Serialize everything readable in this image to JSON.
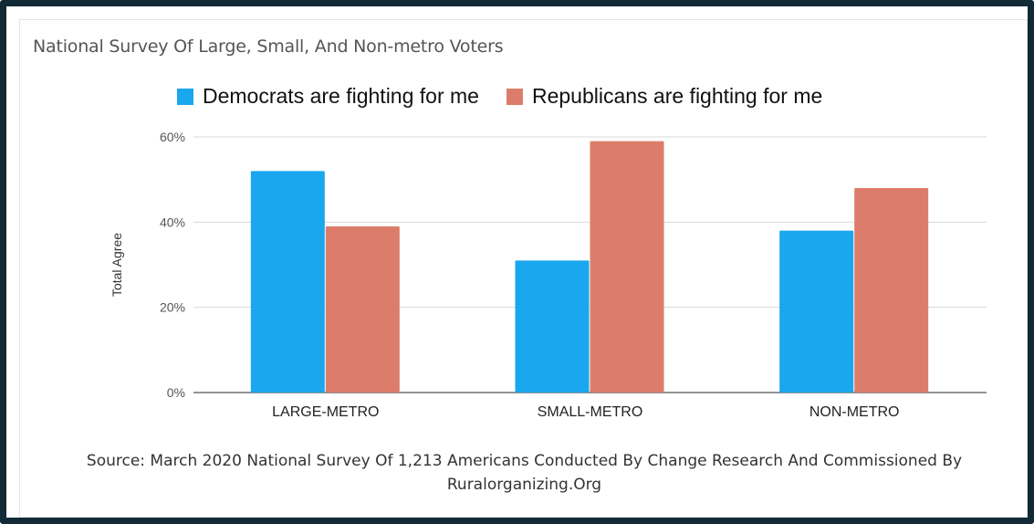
{
  "title": "National Survey Of Large, Small, And Non-metro Voters",
  "source_line1": "Source: March 2020 National Survey Of 1,213  Americans Conducted By Change Research  And Commissioned By",
  "source_line2": "Ruralorganizing.Org",
  "chart_data": {
    "type": "bar",
    "categories": [
      "LARGE-METRO",
      "SMALL-METRO",
      "NON-METRO"
    ],
    "series": [
      {
        "name": "Democrats are fighting for me",
        "values": [
          52,
          31,
          38
        ],
        "color": "#1aa7ee"
      },
      {
        "name": "Republicans are fighting for me",
        "values": [
          39,
          59,
          48
        ],
        "color": "#dc7d6b"
      }
    ],
    "ylabel": "Total Agree",
    "ylim": [
      0,
      60
    ],
    "yticks": [
      0,
      20,
      40,
      60
    ],
    "ytick_labels": [
      "0%",
      "20%",
      "40%",
      "60%"
    ],
    "grid": true,
    "legend": "top"
  }
}
